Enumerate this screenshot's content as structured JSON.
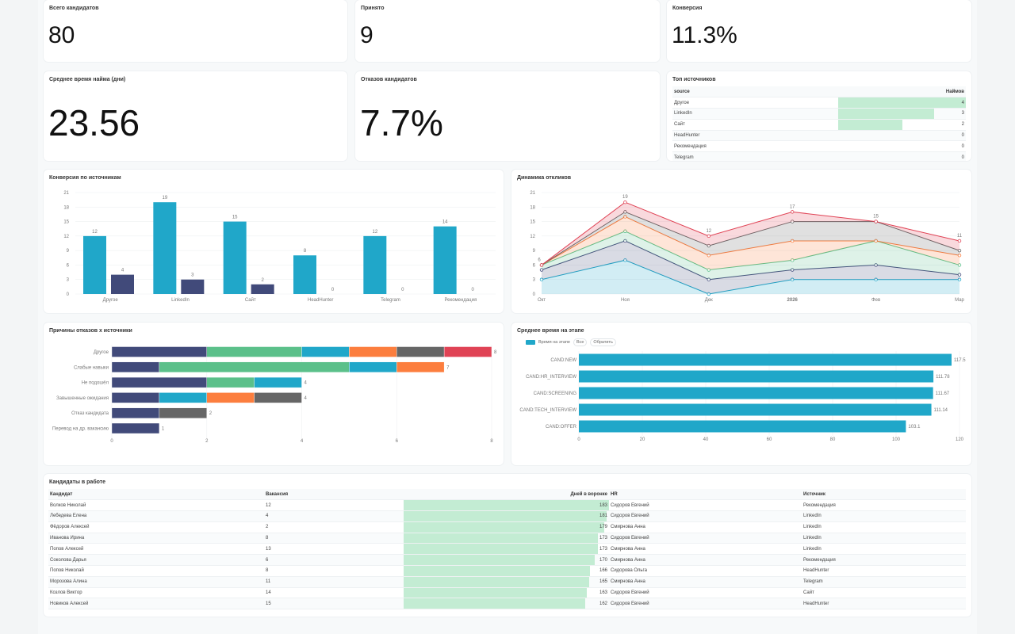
{
  "kpis": [
    {
      "title": "Всего кандидатов",
      "value": "80"
    },
    {
      "title": "Принято",
      "value": "9"
    },
    {
      "title": "Конверсия",
      "value": "11.3%"
    },
    {
      "title": "Среднее время найма (дни)",
      "value": "23.56"
    },
    {
      "title": "Отказов кандидатов",
      "value": "7.7%"
    }
  ],
  "top_sources": {
    "title": "Топ источников",
    "headers": [
      "source",
      "Наймов"
    ],
    "max": 4,
    "rows": [
      {
        "source": "Другое",
        "hires": 4
      },
      {
        "source": "LinkedIn",
        "hires": 3
      },
      {
        "source": "Сайт",
        "hires": 2
      },
      {
        "source": "HeadHunter",
        "hires": 0
      },
      {
        "source": "Рекомендация",
        "hires": 0
      },
      {
        "source": "Telegram",
        "hires": 0
      }
    ]
  },
  "chart_data": [
    {
      "type": "bar",
      "title": "Конверсия по источникам",
      "categories": [
        "Другое",
        "LinkedIn",
        "Сайт",
        "HeadHunter",
        "Telegram",
        "Рекомендация"
      ],
      "series": [
        {
          "values": [
            12,
            19,
            15,
            8,
            12,
            14
          ],
          "color": "#20a7c9"
        },
        {
          "values": [
            4,
            3,
            2,
            0,
            0,
            0
          ],
          "color": "#414a7a"
        }
      ],
      "ylim": [
        0,
        21
      ],
      "yticks": [
        0,
        3,
        6,
        9,
        12,
        15,
        18,
        21
      ]
    },
    {
      "type": "area",
      "stacked": true,
      "title": "Динамика откликов",
      "x": [
        "Окт",
        "Ноя",
        "Дек",
        "2026",
        "Фев",
        "Мар"
      ],
      "series": [
        {
          "values": [
            3,
            7,
            0,
            3,
            3,
            3
          ],
          "color": "#20a7c9"
        },
        {
          "values": [
            2,
            4,
            3,
            2,
            3,
            1
          ],
          "color": "#414a7a"
        },
        {
          "values": [
            1,
            2,
            2,
            2,
            5,
            2
          ],
          "color": "#5bc08a"
        },
        {
          "values": [
            0,
            3,
            3,
            4,
            0,
            2
          ],
          "color": "#fc7e3e"
        },
        {
          "values": [
            0,
            1,
            2,
            4,
            4,
            1
          ],
          "color": "#666666"
        },
        {
          "values": [
            0,
            2,
            2,
            2,
            0,
            2
          ],
          "color": "#e04355"
        }
      ],
      "totals": [
        6,
        19,
        12,
        17,
        15,
        11
      ],
      "ylim": [
        0,
        21
      ],
      "yticks": [
        0,
        3,
        6,
        9,
        12,
        15,
        18,
        21
      ]
    },
    {
      "type": "bar",
      "orientation": "horizontal",
      "stacked": true,
      "title": "Причины отказов x источники",
      "categories": [
        "Другое",
        "Слабые навыки",
        "Не подошёл",
        "Завышенные ожидания",
        "Отказ кандидата",
        "Перевод на др. вакансию"
      ],
      "series": [
        {
          "values": [
            2,
            1,
            2,
            1,
            1,
            1
          ],
          "color": "#414a7a"
        },
        {
          "values": [
            2,
            4,
            1,
            0,
            0,
            0
          ],
          "color": "#5bc08a"
        },
        {
          "values": [
            1,
            1,
            1,
            1,
            0,
            0
          ],
          "color": "#20a7c9"
        },
        {
          "values": [
            1,
            1,
            0,
            1,
            0,
            0
          ],
          "color": "#fc7e3e"
        },
        {
          "values": [
            1,
            0,
            0,
            1,
            1,
            0
          ],
          "color": "#666666"
        },
        {
          "values": [
            1,
            0,
            0,
            0,
            0,
            0
          ],
          "color": "#e04355"
        }
      ],
      "totals": [
        8,
        7,
        4,
        4,
        2,
        1
      ],
      "xlim": [
        0,
        8
      ],
      "xticks": [
        0,
        2,
        4,
        6,
        8
      ]
    },
    {
      "type": "bar",
      "orientation": "horizontal",
      "title": "Среднее время на этапе",
      "legend": {
        "label": "Время на этапе",
        "all": "Все",
        "invert": "Обратить"
      },
      "categories": [
        "CAND:NEW",
        "CAND:HR_INTERVIEW",
        "CAND:SCREENING",
        "CAND:TECH_INTERVIEW",
        "CAND:OFFER"
      ],
      "values": [
        117.5,
        111.78,
        111.67,
        111.14,
        103.1
      ],
      "color": "#20a7c9",
      "xlim": [
        0,
        120
      ],
      "xticks": [
        0,
        20,
        40,
        60,
        80,
        100,
        120
      ]
    }
  ],
  "candidates": {
    "title": "Кандидаты в работе",
    "headers": [
      "Кандидат",
      "Вакансия",
      "Дней в воронке",
      "HR",
      "Источник"
    ],
    "max": 183,
    "rows": [
      [
        "Волков Николай",
        "12",
        183,
        "Сидоров Евгений",
        "Рекомендация"
      ],
      [
        "Лебедева Елена",
        "4",
        181,
        "Сидоров Евгений",
        "LinkedIn"
      ],
      [
        "Фёдоров Алексей",
        "2",
        179,
        "Смирнова Анна",
        "LinkedIn"
      ],
      [
        "Иванова Ирина",
        "8",
        173,
        "Сидоров Евгений",
        "LinkedIn"
      ],
      [
        "Попов Алексей",
        "13",
        173,
        "Смирнова Анна",
        "LinkedIn"
      ],
      [
        "Соколова Дарья",
        "6",
        170,
        "Смирнова Анна",
        "Рекомендация"
      ],
      [
        "Попов Николай",
        "8",
        166,
        "Сидорова Ольга",
        "HeadHunter"
      ],
      [
        "Морозова Алина",
        "11",
        165,
        "Смирнова Анна",
        "Telegram"
      ],
      [
        "Козлов Виктор",
        "14",
        163,
        "Сидоров Евгений",
        "Сайт"
      ],
      [
        "Новиков Алексей",
        "15",
        162,
        "Сидоров Евгений",
        "HeadHunter"
      ]
    ]
  }
}
